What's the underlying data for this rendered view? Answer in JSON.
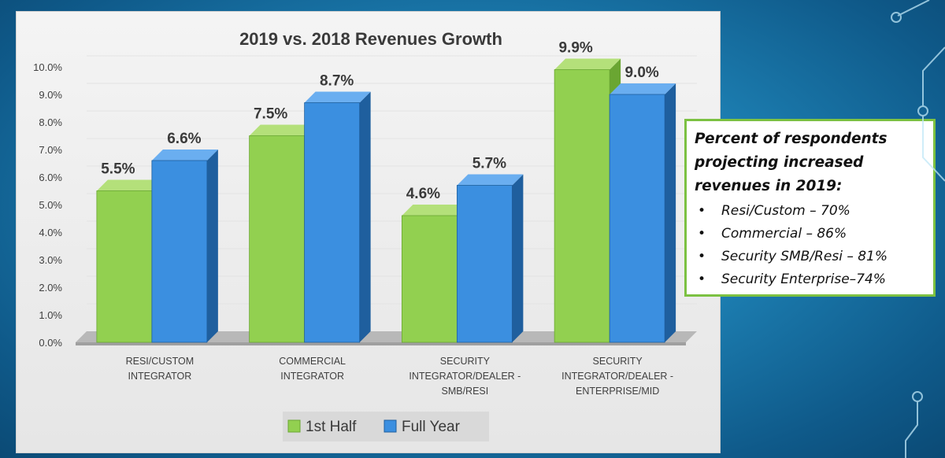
{
  "chart_data": {
    "type": "bar",
    "title": "2019 vs. 2018 Revenues Growth",
    "categories": [
      [
        "RESI/CUSTOM",
        "INTEGRATOR"
      ],
      [
        "COMMERCIAL",
        "INTEGRATOR"
      ],
      [
        "SECURITY",
        "INTEGRATOR/DEALER -",
        "SMB/RESI"
      ],
      [
        "SECURITY",
        "INTEGRATOR/DEALER -",
        "ENTERPRISE/MID"
      ]
    ],
    "series": [
      {
        "name": "1st Half",
        "values": [
          5.5,
          7.5,
          4.6,
          9.9
        ],
        "labels": [
          "5.5%",
          "7.5%",
          "4.6%",
          "9.9%"
        ],
        "color": "#92d050"
      },
      {
        "name": "Full Year",
        "values": [
          6.6,
          8.7,
          5.7,
          9.0
        ],
        "labels": [
          "6.6%",
          "8.7%",
          "5.7%",
          "9.0%"
        ],
        "color": "#3b8fe0"
      }
    ],
    "ylim": [
      0,
      10
    ],
    "yticks": [
      "0.0%",
      "1.0%",
      "2.0%",
      "3.0%",
      "4.0%",
      "5.0%",
      "6.0%",
      "7.0%",
      "8.0%",
      "9.0%",
      "10.0%"
    ],
    "legend_position": "bottom",
    "xlabel": "",
    "ylabel": ""
  },
  "callout": {
    "title_lines": [
      "Percent of respondents",
      "projecting increased",
      "revenues in 2019:"
    ],
    "items": [
      "Resi/Custom – 70%",
      "Commercial – 86%",
      "Security SMB/Resi – 81%",
      "Security Enterprise–74%"
    ],
    "bullet": "•"
  },
  "colors": {
    "first_half": "#92d050",
    "full_year": "#3b8fe0",
    "callout_border": "#7cc142"
  }
}
